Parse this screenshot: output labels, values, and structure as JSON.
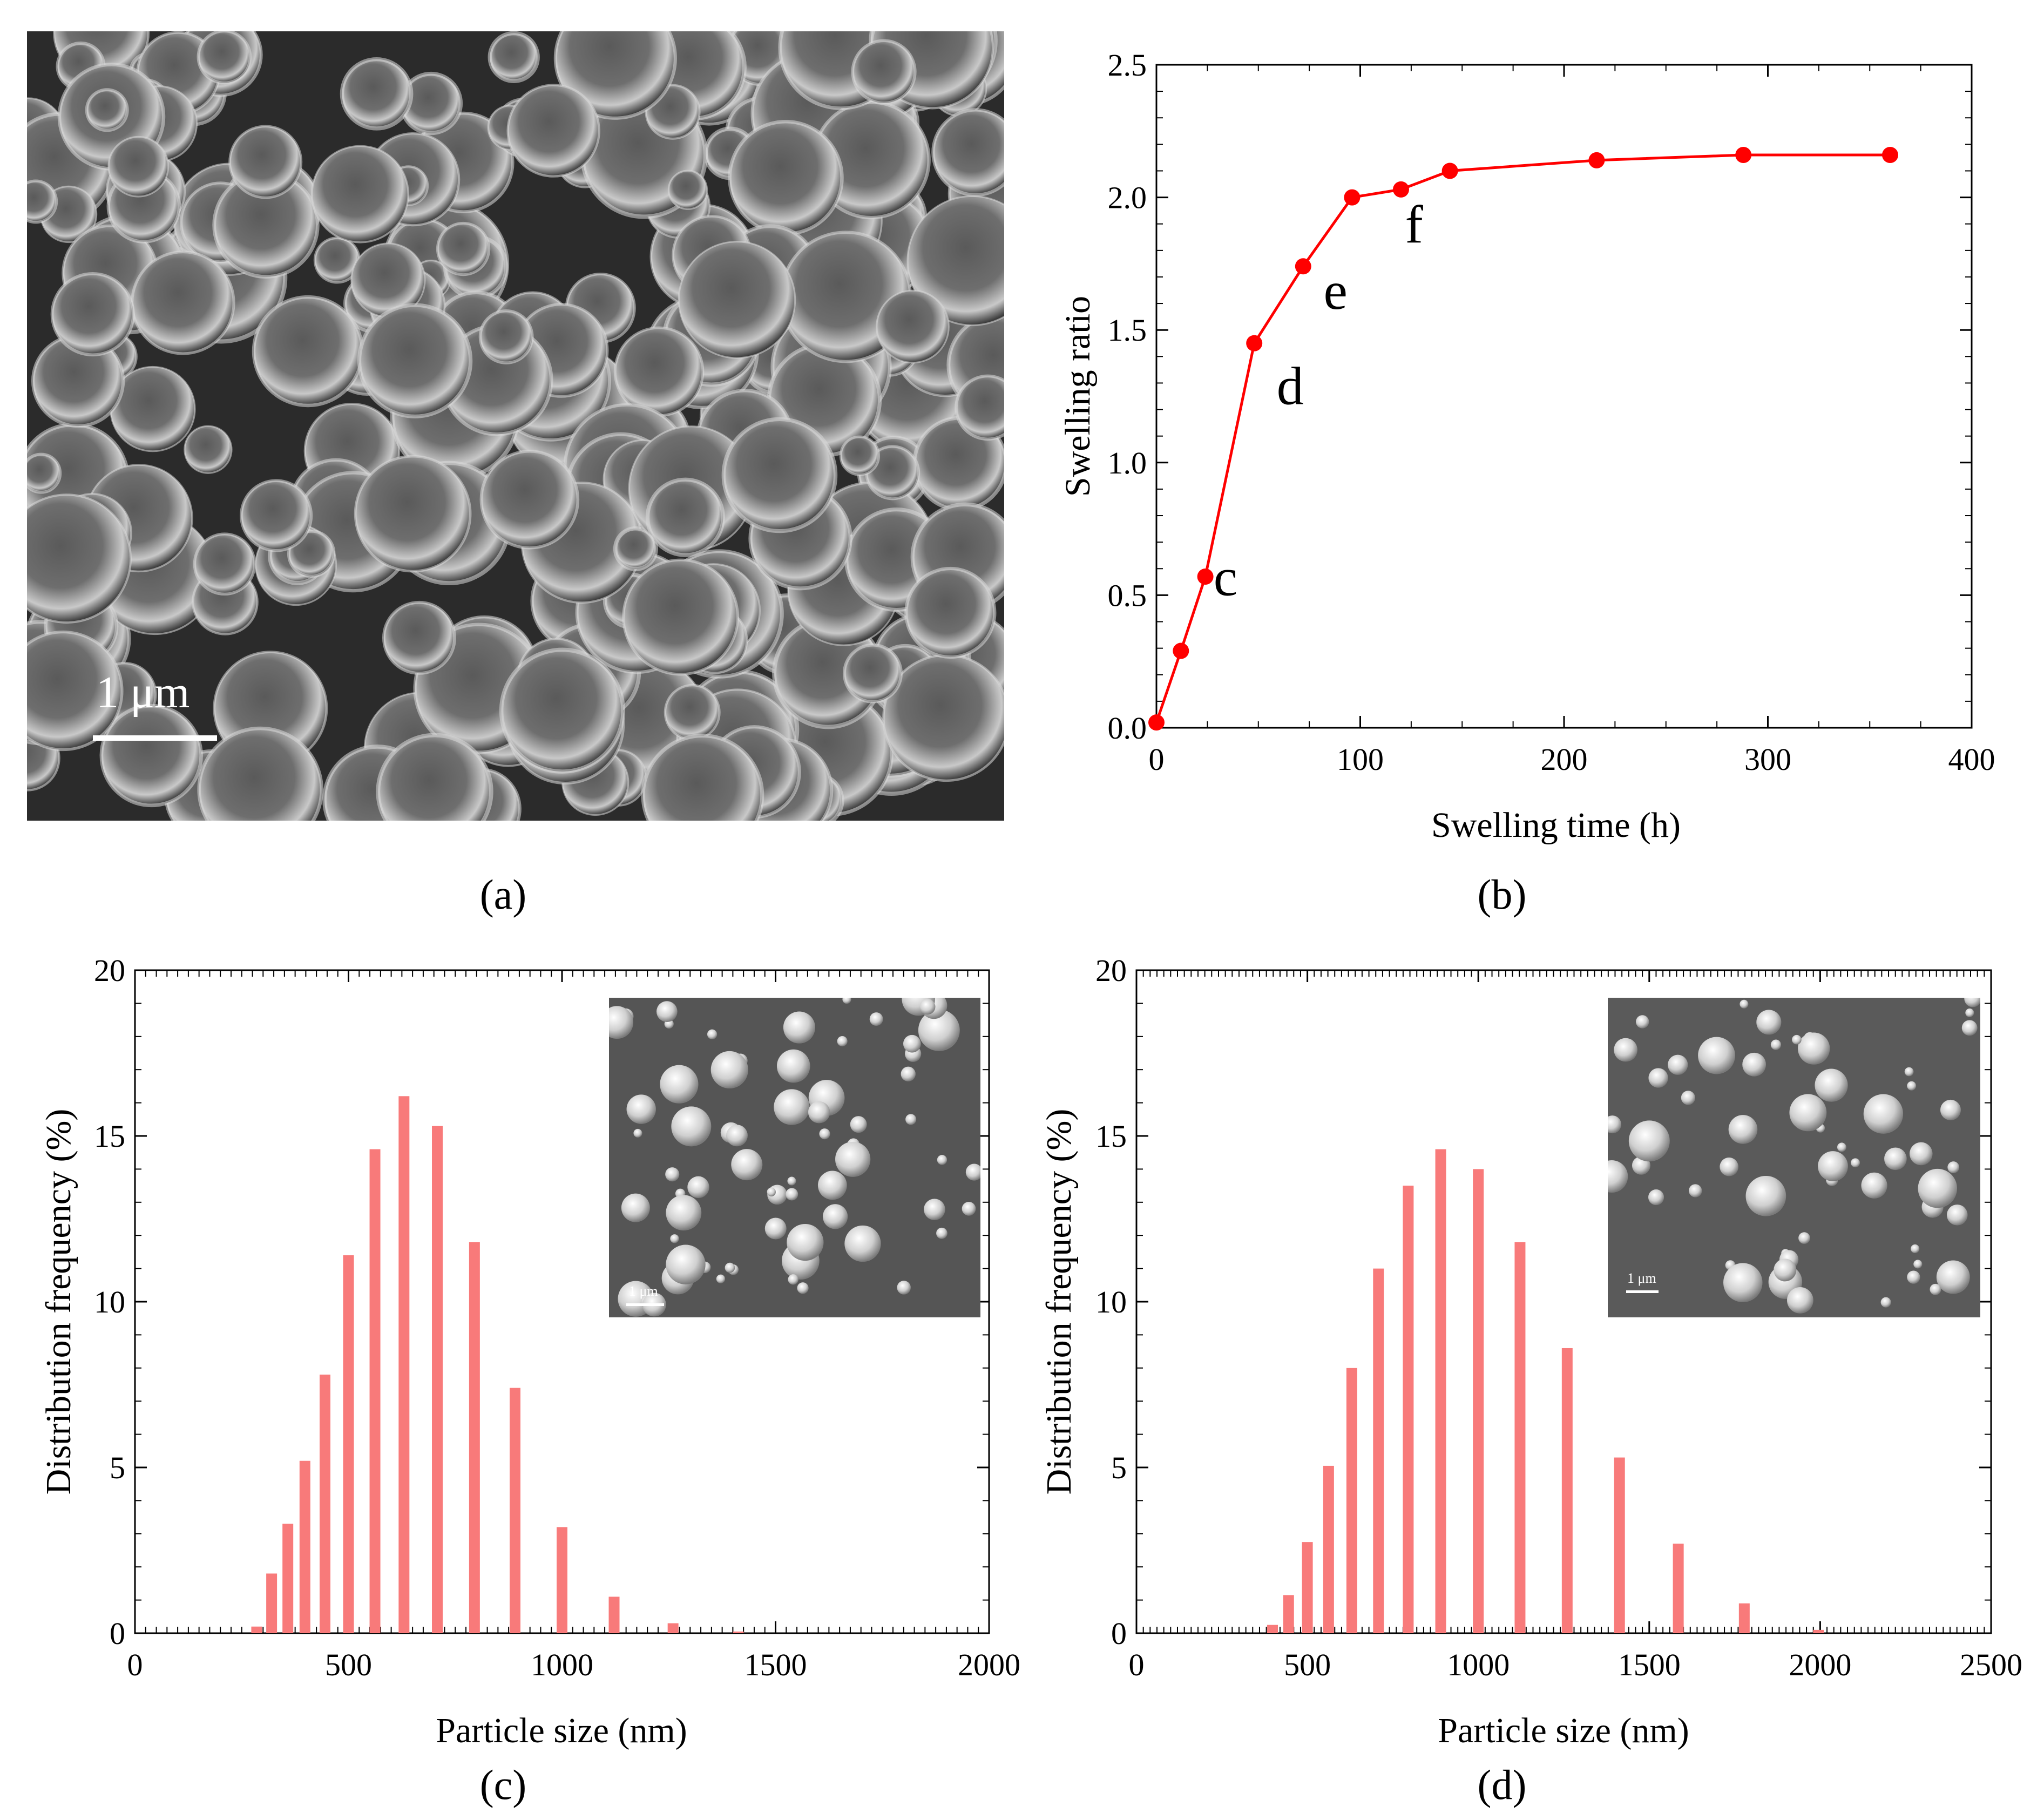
{
  "panels": {
    "a": {
      "caption": "(a)",
      "scale_bar_label": "1 μm"
    },
    "b": {
      "caption": "(b)"
    },
    "c": {
      "caption": "(c)",
      "inset_scale_label": "1 μm"
    },
    "d": {
      "caption": "(d)",
      "inset_scale_label": "1 μm"
    }
  },
  "colors": {
    "line_red": "#ff0000",
    "bar_salmon": "#f87a7a",
    "axis": "#000000"
  },
  "chart_data": [
    {
      "id": "b",
      "type": "line",
      "title": "",
      "xlabel": "Swelling time  (h)",
      "ylabel": "Swelling ratio",
      "xlim": [
        0,
        400
      ],
      "ylim": [
        0,
        2.5
      ],
      "xticks": [
        "0",
        "100",
        "200",
        "300",
        "400"
      ],
      "yticks": [
        "0.0",
        "0.5",
        "1.0",
        "1.5",
        "2.0",
        "2.5"
      ],
      "series": [
        {
          "x": [
            0,
            12,
            24,
            48,
            72,
            96,
            120,
            144,
            216,
            288,
            360
          ],
          "y": [
            0.02,
            0.29,
            0.57,
            1.45,
            1.74,
            2.0,
            2.03,
            2.1,
            2.14,
            2.16,
            2.16
          ]
        }
      ],
      "annotations": [
        {
          "text": "c",
          "x": 28,
          "y": 0.5
        },
        {
          "text": "d",
          "x": 59,
          "y": 1.22
        },
        {
          "text": "e",
          "x": 82,
          "y": 1.58
        },
        {
          "text": "f",
          "x": 122,
          "y": 1.83
        }
      ],
      "grid": false
    },
    {
      "id": "c",
      "type": "bar",
      "title": "",
      "xlabel": "Particle size  (nm)",
      "ylabel": "Distribution frequency  (%)",
      "xlim": [
        0,
        2000
      ],
      "ylim": [
        0,
        20
      ],
      "xticks": [
        "0",
        "500",
        "1000",
        "1500",
        "2000"
      ],
      "yticks": [
        "0",
        "5",
        "10",
        "15",
        "20"
      ],
      "series": [
        {
          "x": [
            285,
            320,
            358,
            398,
            445,
            500,
            562,
            630,
            708,
            795,
            890,
            1000,
            1122,
            1260,
            1413
          ],
          "y": [
            0.2,
            1.8,
            3.3,
            5.2,
            7.8,
            11.4,
            14.6,
            16.2,
            15.3,
            11.8,
            7.4,
            3.2,
            1.1,
            0.3,
            0.05
          ]
        }
      ],
      "grid": false
    },
    {
      "id": "d",
      "type": "bar",
      "title": "",
      "xlabel": "Particle size  (nm)",
      "ylabel": "Distribution frequency  (%)",
      "xlim": [
        0,
        2500
      ],
      "ylim": [
        0,
        20
      ],
      "xticks": [
        "0",
        "500",
        "1000",
        "1500",
        "2000",
        "2500"
      ],
      "yticks": [
        "0",
        "5",
        "10",
        "15",
        "20"
      ],
      "series": [
        {
          "x": [
            398,
            445,
            500,
            562,
            630,
            708,
            795,
            890,
            1000,
            1122,
            1260,
            1413,
            1585,
            1778,
            1995
          ],
          "y": [
            0.25,
            1.15,
            2.75,
            5.05,
            8.0,
            11.0,
            13.5,
            14.6,
            14.0,
            11.8,
            8.6,
            5.3,
            2.7,
            0.9,
            0.1
          ]
        }
      ],
      "grid": false
    }
  ]
}
